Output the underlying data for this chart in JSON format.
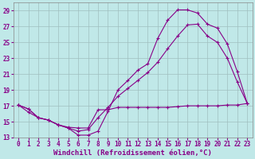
{
  "background_color": "#c0e8e8",
  "grid_color": "#9fbfbf",
  "line_color": "#880088",
  "xlabel": "Windchill (Refroidissement éolien,°C)",
  "xlabel_fontsize": 6.5,
  "tick_fontsize": 5.5,
  "ylim": [
    13,
    30
  ],
  "xlim": [
    -0.5,
    23.5
  ],
  "yticks": [
    13,
    15,
    17,
    19,
    21,
    23,
    25,
    27,
    29
  ],
  "xticks": [
    0,
    1,
    2,
    3,
    4,
    5,
    6,
    7,
    8,
    9,
    10,
    11,
    12,
    13,
    14,
    15,
    16,
    17,
    18,
    19,
    20,
    21,
    22,
    23
  ],
  "curve1_x": [
    0,
    1,
    2,
    3,
    4,
    5,
    6,
    7,
    8,
    9,
    10,
    11,
    12,
    13,
    14,
    15,
    16,
    17,
    18,
    19,
    20,
    21,
    22,
    23
  ],
  "curve1_y": [
    17.1,
    16.6,
    15.5,
    15.2,
    14.6,
    14.2,
    13.3,
    13.3,
    13.8,
    16.3,
    19.0,
    20.2,
    21.5,
    22.3,
    25.5,
    27.8,
    29.1,
    29.1,
    28.7,
    27.3,
    26.8,
    24.8,
    21.3,
    17.3
  ],
  "curve2_x": [
    0,
    1,
    2,
    3,
    4,
    5,
    6,
    7,
    8,
    9,
    10,
    11,
    12,
    13,
    14,
    15,
    16,
    17,
    18,
    19,
    20,
    21,
    22,
    23
  ],
  "curve2_y": [
    17.1,
    16.6,
    15.5,
    15.2,
    14.6,
    14.2,
    13.8,
    14.0,
    15.5,
    16.8,
    18.2,
    19.2,
    20.2,
    21.2,
    22.5,
    24.2,
    25.8,
    27.2,
    27.3,
    25.8,
    25.0,
    23.0,
    20.0,
    17.3
  ],
  "curve3_x": [
    0,
    1,
    2,
    3,
    4,
    5,
    6,
    7,
    8,
    9,
    10,
    11,
    12,
    13,
    14,
    15,
    16,
    17,
    18,
    19,
    20,
    21,
    22,
    23
  ],
  "curve3_y": [
    17.1,
    16.2,
    15.5,
    15.2,
    14.6,
    14.3,
    14.2,
    14.2,
    16.5,
    16.5,
    16.8,
    16.8,
    16.8,
    16.8,
    16.8,
    16.8,
    16.9,
    17.0,
    17.0,
    17.0,
    17.0,
    17.1,
    17.1,
    17.3
  ]
}
